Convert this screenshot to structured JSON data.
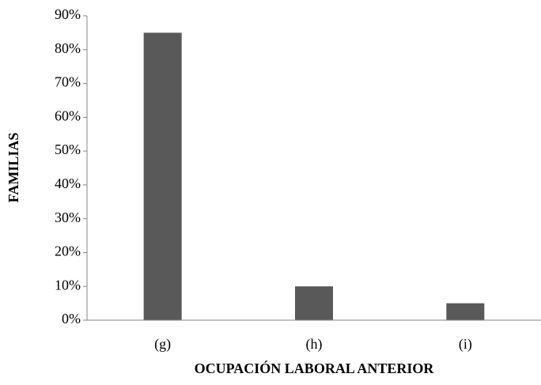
{
  "chart_data": {
    "type": "bar",
    "xlabel": "OCUPACIÓN LABORAL ANTERIOR",
    "ylabel": "FAMILIAS",
    "categories": [
      "(g)",
      "(h)",
      "(i)"
    ],
    "values": [
      85,
      10,
      5
    ],
    "color": "#595959",
    "ylim": [
      0,
      90
    ],
    "yticks": [
      {
        "value": 0,
        "label": "0%"
      },
      {
        "value": 10,
        "label": "10%"
      },
      {
        "value": 20,
        "label": "20%"
      },
      {
        "value": 30,
        "label": "30%"
      },
      {
        "value": 40,
        "label": "40%"
      },
      {
        "value": 50,
        "label": "50%"
      },
      {
        "value": 60,
        "label": "60%"
      },
      {
        "value": 70,
        "label": "70%"
      },
      {
        "value": 80,
        "label": "80%"
      },
      {
        "value": 90,
        "label": "90%"
      }
    ],
    "grid": false
  }
}
